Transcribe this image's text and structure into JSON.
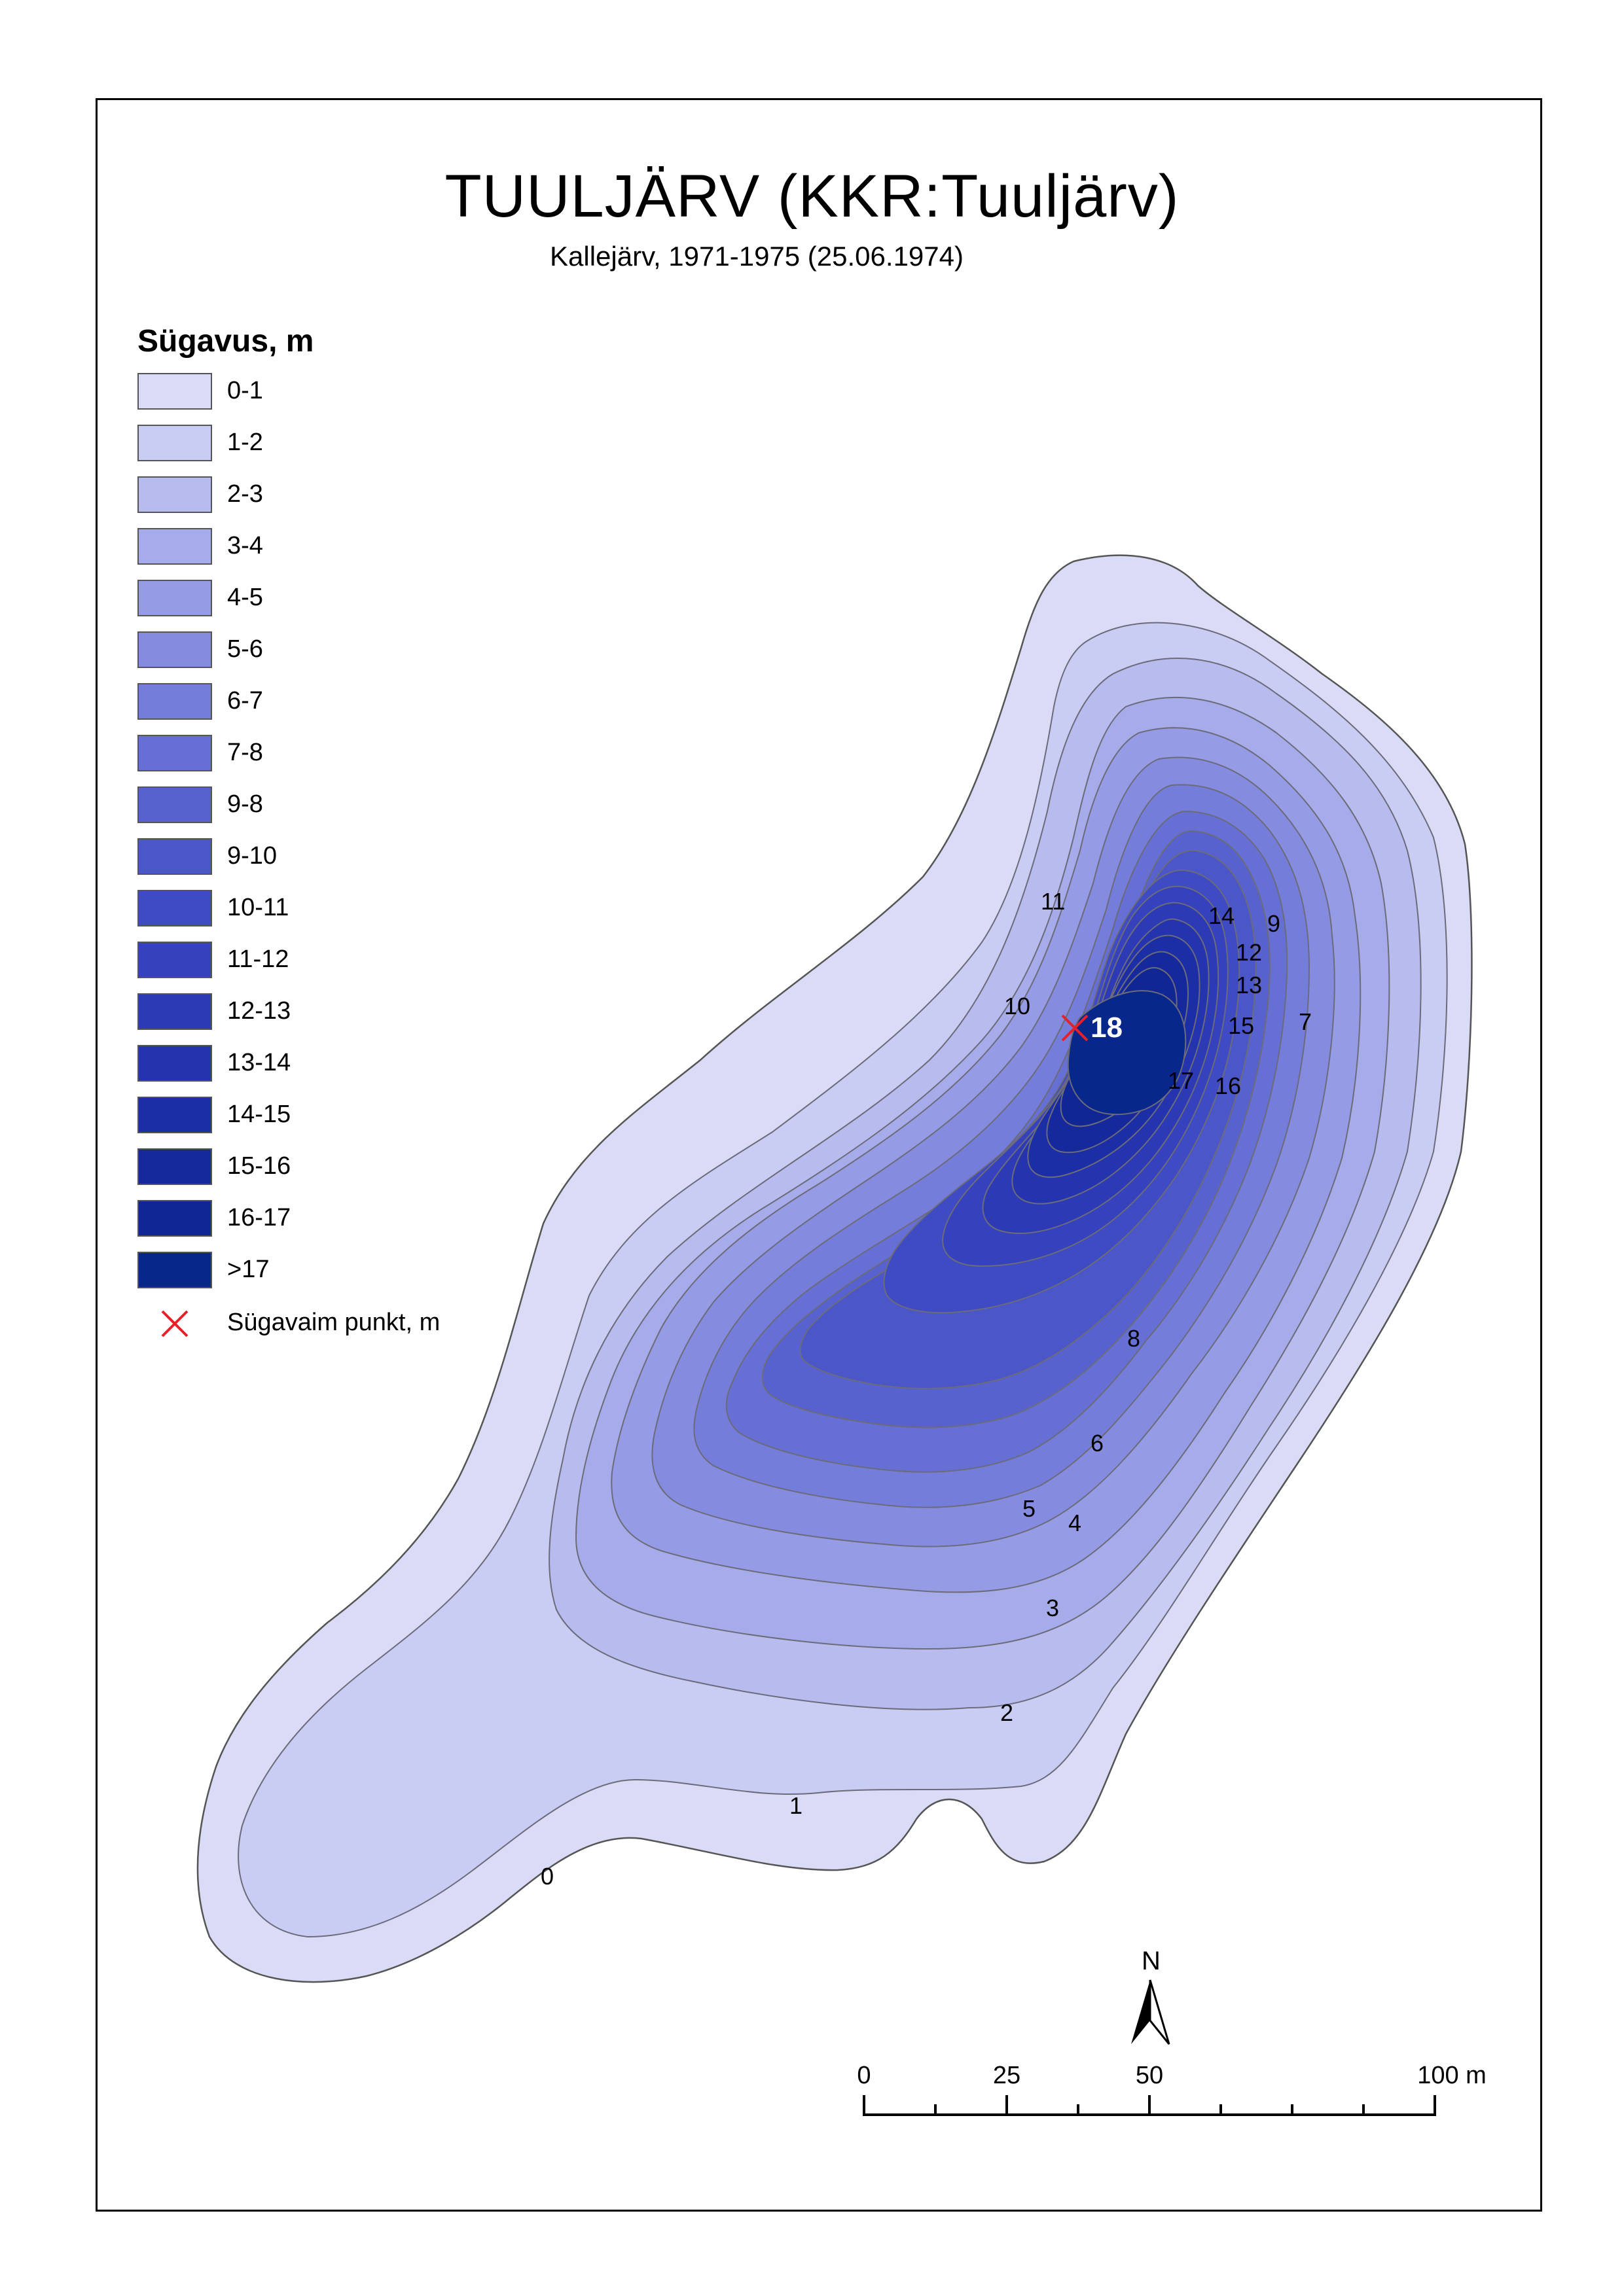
{
  "map": {
    "title": "TUULJÄRV (KKR:Tuuljärv)",
    "subtitle": "Kallejärv, 1971-1975 (25.06.1974)"
  },
  "legend": {
    "title": "Sügavus, m",
    "classes": [
      {
        "label": "0-1",
        "color": "#dadcf7"
      },
      {
        "label": "1-2",
        "color": "#c9ccf3"
      },
      {
        "label": "2-3",
        "color": "#b7bbee"
      },
      {
        "label": "3-4",
        "color": "#a6abe9"
      },
      {
        "label": "4-5",
        "color": "#959be4"
      },
      {
        "label": "5-6",
        "color": "#858cdf"
      },
      {
        "label": "6-7",
        "color": "#757dda"
      },
      {
        "label": "7-8",
        "color": "#666fd4"
      },
      {
        "label": "9-8",
        "color": "#5862cf"
      },
      {
        "label": "9-10",
        "color": "#4b56c9"
      },
      {
        "label": "10-11",
        "color": "#3f4bc3"
      },
      {
        "label": "11-12",
        "color": "#3541bd"
      },
      {
        "label": "12-13",
        "color": "#2c3ab6"
      },
      {
        "label": "13-14",
        "color": "#2433ae"
      },
      {
        "label": "14-15",
        "color": "#1c2ea6"
      },
      {
        "label": "15-16",
        "color": "#15299d"
      },
      {
        "label": "16-17",
        "color": "#0f2694"
      },
      {
        "label": ">17",
        "color": "#08278b"
      }
    ],
    "deepest_point_label": "Sügavaim punkt, m",
    "deepest_marker_color": "#e8202a"
  },
  "contour_labels": [
    "0",
    "1",
    "2",
    "3",
    "4",
    "5",
    "6",
    "8",
    "7",
    "9",
    "10",
    "11",
    "12",
    "13",
    "14",
    "15",
    "16",
    "17"
  ],
  "deepest_point": {
    "depth": "18"
  },
  "north_arrow": {
    "label": "N"
  },
  "scale_bar": {
    "ticks": [
      "0",
      "25",
      "50",
      "100 m"
    ]
  }
}
